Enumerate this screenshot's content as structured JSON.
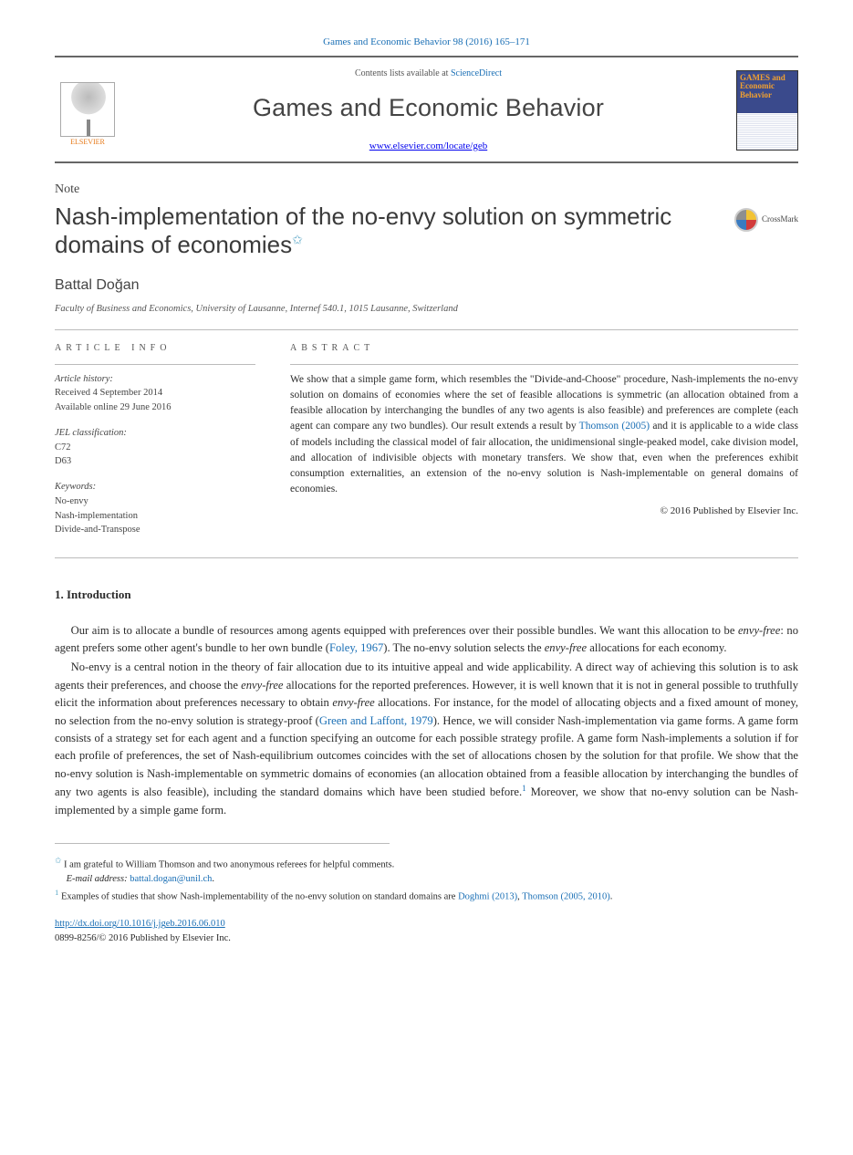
{
  "journal_ref": "Games and Economic Behavior 98 (2016) 165–171",
  "header": {
    "contents_prefix": "Contents lists available at ",
    "contents_link": "ScienceDirect",
    "journal_name": "Games and Economic Behavior",
    "homepage": "www.elsevier.com/locate/geb",
    "publisher_logo": "ELSEVIER",
    "cover": {
      "line1": "GAMES and",
      "line2": "Economic",
      "line3": "Behavior"
    }
  },
  "note_label": "Note",
  "title_line1": "Nash-implementation of the no-envy solution on symmetric",
  "title_line2": "domains of economies",
  "title_star": "✩",
  "crossmark_label": "CrossMark",
  "author": "Battal Doğan",
  "affiliation": "Faculty of Business and Economics, University of Lausanne, Internef 540.1, 1015 Lausanne, Switzerland",
  "article_info": {
    "heading": "ARTICLE INFO",
    "history_label": "Article history:",
    "received": "Received 4 September 2014",
    "online": "Available online 29 June 2016",
    "jel_label": "JEL classification:",
    "jel": [
      "C72",
      "D63"
    ],
    "keywords_label": "Keywords:",
    "keywords": [
      "No-envy",
      "Nash-implementation",
      "Divide-and-Transpose"
    ]
  },
  "abstract": {
    "heading": "ABSTRACT",
    "text_1": "We show that a simple game form, which resembles the \"Divide-and-Choose\" procedure, Nash-implements the no-envy solution on domains of economies where the set of feasible allocations is symmetric (an allocation obtained from a feasible allocation by interchanging the bundles of any two agents is also feasible) and preferences are complete (each agent can compare any two bundles). Our result extends a result by ",
    "link_thomson": "Thomson (2005)",
    "text_2": " and it is applicable to a wide class of models including the classical model of fair allocation, the unidimensional single-peaked model, cake division model, and allocation of indivisible objects with monetary transfers. We show that, even when the preferences exhibit consumption externalities, an extension of the no-envy solution is Nash-implementable on general domains of economies.",
    "copyright": "© 2016 Published by Elsevier Inc."
  },
  "intro": {
    "heading": "1. Introduction",
    "p1_a": "Our aim is to allocate a bundle of resources among agents equipped with preferences over their possible bundles. We want this allocation to be ",
    "p1_envyfree": "envy-free",
    "p1_b": ": no agent prefers some other agent's bundle to her own bundle (",
    "p1_foley": "Foley, 1967",
    "p1_c": "). The no-envy solution selects the ",
    "p1_d": " allocations for each economy.",
    "p2_a": "No-envy is a central notion in the theory of fair allocation due to its intuitive appeal and wide applicability. A direct way of achieving this solution is to ask agents their preferences, and choose the ",
    "p2_b": " allocations for the reported preferences. However, it is well known that it is not in general possible to truthfully elicit the information about preferences necessary to obtain ",
    "p2_c": " allocations. For instance, for the model of allocating objects and a fixed amount of money, no selection from the no-envy solution is strategy-proof (",
    "p2_green": "Green and Laffont, 1979",
    "p2_d": "). Hence, we will consider Nash-implementation via game forms. A game form consists of a strategy set for each agent and a function specifying an outcome for each possible strategy profile. A game form Nash-implements a solution if for each profile of preferences, the set of Nash-equilibrium outcomes coincides with the set of allocations chosen by the solution for that profile. We show that the no-envy solution is Nash-implementable on symmetric domains of economies (an allocation obtained from a feasible allocation by interchanging the bundles of any two agents is also feasible), including the standard domains which have been studied before.",
    "p2_e": " Moreover, we show that no-envy solution can be Nash-implemented by a simple game form."
  },
  "footnotes": {
    "star": "I am grateful to William Thomson and two anonymous referees for helpful comments.",
    "email_label": "E-mail address:",
    "email": "battal.dogan@unil.ch",
    "fn1_a": "Examples of studies that show Nash-implementability of the no-envy solution on standard domains are ",
    "fn1_doghmi": "Doghmi (2013)",
    "fn1_b": ", ",
    "fn1_thomson": "Thomson (2005, 2010)",
    "fn1_c": "."
  },
  "doi": {
    "url": "http://dx.doi.org/10.1016/j.jgeb.2016.06.010",
    "issn_line": "0899-8256/© 2016 Published by Elsevier Inc."
  },
  "colors": {
    "link": "#1a6fb5",
    "accent_orange": "#e67817",
    "text": "#2a2a2a",
    "rule": "#bbbbbb"
  }
}
